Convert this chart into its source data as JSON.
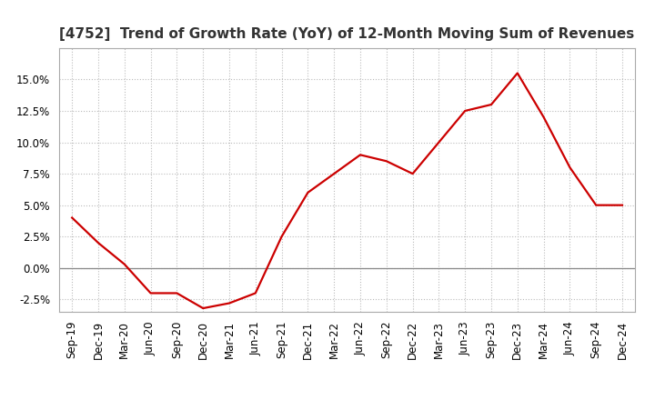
{
  "title": "[4752]  Trend of Growth Rate (YoY) of 12-Month Moving Sum of Revenues",
  "x_labels": [
    "Sep-19",
    "Dec-19",
    "Mar-20",
    "Jun-20",
    "Sep-20",
    "Dec-20",
    "Mar-21",
    "Jun-21",
    "Sep-21",
    "Dec-21",
    "Mar-22",
    "Jun-22",
    "Sep-22",
    "Dec-22",
    "Mar-23",
    "Jun-23",
    "Sep-23",
    "Dec-23",
    "Mar-24",
    "Jun-24",
    "Sep-24",
    "Dec-24"
  ],
  "y_values": [
    0.04,
    0.02,
    0.003,
    -0.02,
    -0.02,
    -0.032,
    -0.028,
    -0.02,
    0.025,
    0.06,
    0.075,
    0.09,
    0.085,
    0.075,
    0.1,
    0.125,
    0.13,
    0.155,
    0.12,
    0.08,
    0.05,
    0.05
  ],
  "line_color": "#cc0000",
  "background_color": "#ffffff",
  "grid_color": "#bbbbbb",
  "zero_line_color": "#888888",
  "ylim": [
    -0.035,
    0.175
  ],
  "yticks": [
    -0.025,
    0.0,
    0.025,
    0.05,
    0.075,
    0.1,
    0.125,
    0.15
  ],
  "title_fontsize": 11,
  "tick_fontsize": 8.5
}
